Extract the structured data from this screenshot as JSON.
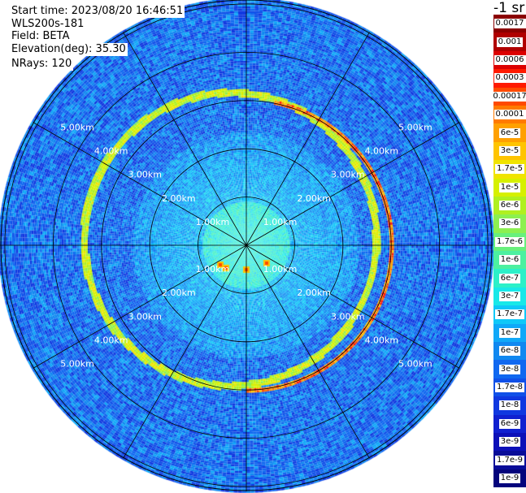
{
  "info": {
    "start_time": "Start time: 2023/08/20 16:46:51",
    "instrument": "WLS200s-181",
    "field": "Field: BETA",
    "elevation": "Elevation(deg): 35.30",
    "nrays": "NRays: 120"
  },
  "colorbar": {
    "title": "-1 sr",
    "labels": [
      "0.0017",
      "0.001",
      "0.0006",
      "0.0003",
      "0.00017",
      "0.0001",
      "6e-5",
      "3e-5",
      "1.7e-5",
      "1e-5",
      "6e-6",
      "3e-6",
      "1.7e-6",
      "1e-6",
      "6e-7",
      "3e-7",
      "1.7e-7",
      "1e-7",
      "6e-8",
      "3e-8",
      "1.7e-8",
      "1e-8",
      "6e-9",
      "3e-9",
      "1.7e-9",
      "1e-9"
    ],
    "colors": [
      "#8b0000",
      "#b00000",
      "#dc0000",
      "#ff1a00",
      "#ff4a00",
      "#ff7a00",
      "#ffa000",
      "#ffc400",
      "#f0e400",
      "#d6f000",
      "#b0f020",
      "#8cf050",
      "#68f07c",
      "#4cf0a0",
      "#2cf0c8",
      "#18e8e8",
      "#10c8f8",
      "#10a8f8",
      "#1088f0",
      "#1068f0",
      "#1050e8",
      "#1038e0",
      "#1020d0",
      "#0c10b8",
      "#080c98",
      "#04047c"
    ]
  },
  "chart_data": {
    "type": "heatmap",
    "subtype": "polar-ppi",
    "field": "BETA",
    "units": "-1 sr",
    "nrays": 120,
    "elevation_deg": 35.3,
    "range_rings_km": [
      1.0,
      2.0,
      3.0,
      4.0,
      5.0
    ],
    "ring_labels": [
      "1.00km",
      "2.00km",
      "3.00km",
      "4.00km",
      "5.00km"
    ],
    "spokes_deg": [
      0,
      30,
      60,
      90,
      120,
      150,
      180,
      210,
      240,
      270,
      300,
      330
    ],
    "max_range_km": 5.1,
    "features": {
      "aerosol_ring_km": 3.0,
      "inner_ring_km": 2.95,
      "background_level": "3e-8",
      "near_field_level": "3e-7",
      "hotspots_level": "3e-5"
    }
  }
}
